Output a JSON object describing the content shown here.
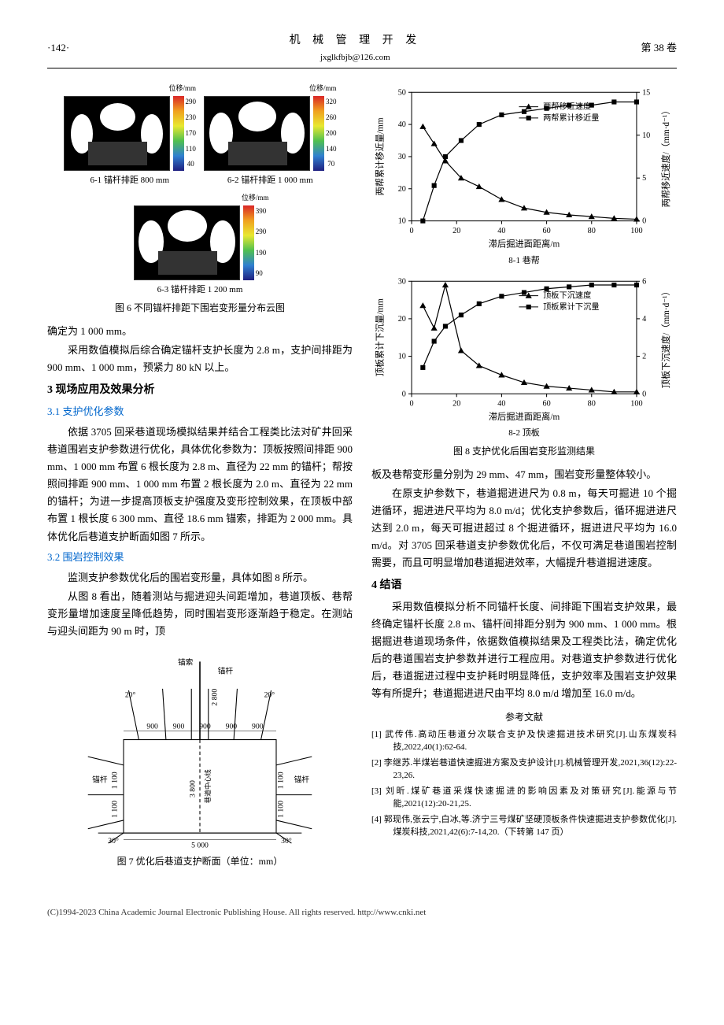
{
  "header": {
    "page": "·142·",
    "title": "机 械 管 理 开 发",
    "email": "jxglkfbjb@126.com",
    "volume": "第 38 卷"
  },
  "fig6": {
    "unit": "位移/mm",
    "sub1": {
      "label": "6-1  锚杆排距 800 mm",
      "ticks": [
        "290",
        "230",
        "170",
        "110",
        "40"
      ]
    },
    "sub2": {
      "label": "6-2  锚杆排距 1 000 mm",
      "ticks": [
        "320",
        "260",
        "200",
        "140",
        "70"
      ]
    },
    "sub3": {
      "label": "6-3  锚杆排距 1 200 mm",
      "ticks": [
        "390",
        "290",
        "190",
        "90"
      ]
    },
    "caption": "图 6  不同锚杆排距下围岩变形量分布云图"
  },
  "text": {
    "p1": "确定为 1 000 mm。",
    "p2": "采用数值模拟后综合确定锚杆支护长度为 2.8 m，支护间排距为 900 mm、1 000 mm，预紧力 80 kN 以上。",
    "s3": "3  现场应用及效果分析",
    "s31": "3.1  支护优化参数",
    "p3": "依据 3705 回采巷道现场模拟结果并结合工程类比法对矿井回采巷道围岩支护参数进行优化，具体优化参数为：顶板按照间排距 900 mm、1 000 mm 布置 6 根长度为 2.8 m、直径为 22 mm 的锚杆；帮按照间排距 900 mm、1 000 mm 布置 2 根长度为 2.0 m、直径为 22 mm 的锚杆；为进一步提高顶板支护强度及变形控制效果，在顶板中部布置 1 根长度 6 300 mm、直径 18.6 mm 锚索，排距为 2 000 mm。具体优化后巷道支护断面如图 7 所示。",
    "s32": "3.2  围岩控制效果",
    "p4": "监测支护参数优化后的围岩变形量，具体如图 8 所示。",
    "p5": "从图 8 看出，随着测站与掘进迎头间距增加，巷道顶板、巷帮变形量增加速度呈降低趋势，同时围岩变形逐渐趋于稳定。在测站与迎头间距为 90 m 时，顶",
    "p6": "板及巷帮变形量分别为 29 mm、47 mm，围岩变形量整体较小。",
    "p7": "在原支护参数下，巷道掘进进尺为 0.8 m，每天可掘进 10 个掘进循环，掘进进尺平均为 8.0 m/d；优化支护参数后，循环掘进进尺达到 2.0 m，每天可掘进超过 8 个掘进循环，掘进进尺平均为 16.0 m/d。对 3705 回采巷道支护参数优化后，不仅可满足巷道围岩控制需要，而且可明显增加巷道掘进效率，大幅提升巷道掘进速度。",
    "s4": "4  结语",
    "p8": "采用数值模拟分析不同锚杆长度、间排距下围岩支护效果，最终确定锚杆长度 2.8 m、锚杆间排距分别为 900 mm、1 000 mm。根据掘进巷道现场条件，依据数值模拟结果及工程类比法，确定优化后的巷道围岩支护参数并进行工程应用。对巷道支护参数进行优化后，巷道掘进过程中支护耗时明显降低，支护效率及围岩支护效果等有所提升；巷道掘进进尺由平均 8.0 m/d 增加至 16.0 m/d。"
  },
  "fig7": {
    "caption": "图 7  优化后巷道支护断面（单位：mm）",
    "labels": {
      "anchor_cable": "锚索",
      "anchor_rod": "锚杆",
      "centerline": "巷道中心线"
    },
    "dims": {
      "top_spacing": "900",
      "side_spacing": "1 100",
      "width": "5 000",
      "height": "3 800",
      "bolt_len": "2 800",
      "side_bolt": "1 100",
      "angle": "30°",
      "angle2": "20°"
    }
  },
  "fig8": {
    "caption": "图 8  支护优化后围岩变形监测结果",
    "sub1": {
      "label": "8-1  巷帮",
      "xlabel": "滞后掘进面距离/m",
      "ylabel_left": "两帮累计移近量/mm",
      "ylabel_right": "两帮移近速度/（mm·d⁻¹）",
      "legend": [
        "两帮移近速度",
        "两帮累计移近量"
      ],
      "xticks": [
        0,
        20,
        40,
        60,
        80,
        100
      ],
      "yticks_left": [
        10,
        20,
        30,
        40,
        50
      ],
      "yticks_right": [
        0,
        5,
        10,
        15
      ],
      "series_cumulative": {
        "x": [
          5,
          10,
          15,
          22,
          30,
          40,
          50,
          60,
          70,
          80,
          90,
          100
        ],
        "y": [
          10,
          21,
          30,
          35,
          40,
          43,
          44,
          45,
          46,
          46,
          47,
          47
        ]
      },
      "series_speed": {
        "x": [
          5,
          10,
          15,
          22,
          30,
          40,
          50,
          60,
          70,
          80,
          90,
          100
        ],
        "y": [
          11,
          9,
          7,
          5,
          4,
          2.5,
          1.5,
          1,
          0.7,
          0.5,
          0.3,
          0.2
        ]
      }
    },
    "sub2": {
      "label": "8-2  顶板",
      "xlabel": "滞后掘进面距离/m",
      "ylabel_left": "顶板累计下沉量/mm",
      "ylabel_right": "顶板下沉速度/（mm·d⁻¹）",
      "legend": [
        "顶板下沉速度",
        "顶板累计下沉量"
      ],
      "xticks": [
        0,
        20,
        40,
        60,
        80,
        100
      ],
      "yticks_left": [
        0,
        10,
        20,
        30
      ],
      "yticks_right": [
        0,
        2,
        4,
        6
      ],
      "series_cumulative": {
        "x": [
          5,
          10,
          15,
          22,
          30,
          40,
          50,
          60,
          70,
          80,
          90,
          100
        ],
        "y": [
          7,
          14,
          18,
          21,
          24,
          26,
          27,
          28,
          28.5,
          29,
          29,
          29
        ]
      },
      "series_speed": {
        "x": [
          5,
          10,
          15,
          22,
          30,
          40,
          50,
          60,
          70,
          80,
          90,
          100
        ],
        "y": [
          4.7,
          3.5,
          5.8,
          2.3,
          1.5,
          1.0,
          0.6,
          0.4,
          0.3,
          0.2,
          0.1,
          0.1
        ]
      }
    },
    "colors": {
      "line": "#000",
      "marker_tri": "#000",
      "marker_sq": "#000"
    }
  },
  "refs": {
    "title": "参考文献",
    "items": [
      "[1]   武传伟.高动压巷道分次联合支护及快速掘进技术研究[J].山东煤炭科技,2022,40(1):62-64.",
      "[2]   李继苏.半煤岩巷道快速掘进方案及支护设计[J].机械管理开发,2021,36(12):22-23,26.",
      "[3]   刘昕.煤矿巷道采煤快速掘进的影响因素及对策研究[J].能源与节能,2021(12):20-21,25.",
      "[4]   郭现伟,张云宁,白冰,等.济宁三号煤矿坚硬顶板条件快速掘进支护参数优化[J].煤炭科技,2021,42(6):7-14,20.（下转第 147 页）"
    ]
  },
  "footer": "(C)1994-2023 China Academic Journal Electronic Publishing House. All rights reserved.   http://www.cnki.net"
}
